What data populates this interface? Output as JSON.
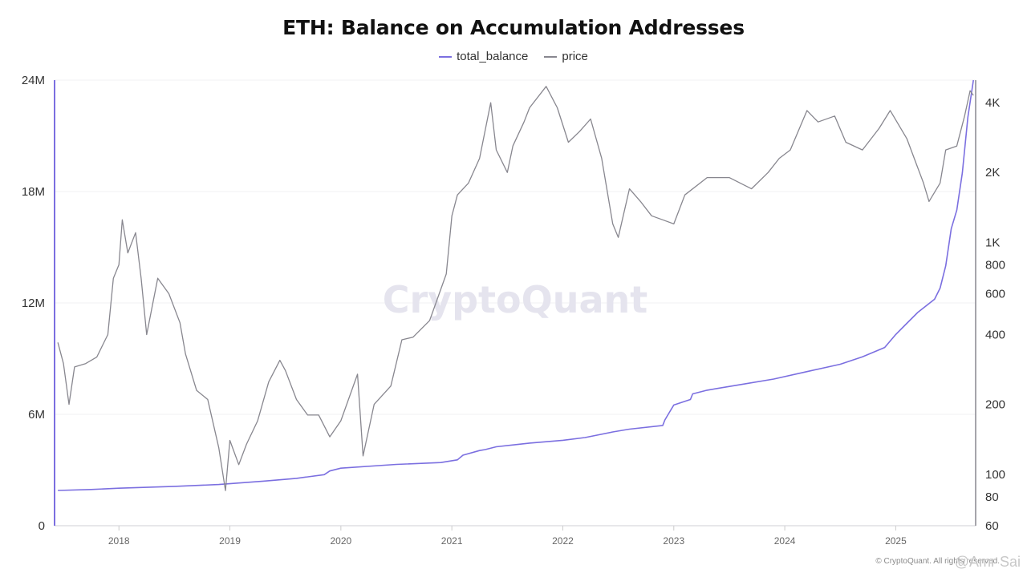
{
  "chart_data": {
    "type": "line",
    "title": "ETH: Balance on Accumulation Addresses",
    "legend_position": "top-center",
    "grid": true,
    "watermark": "CryptoQuant",
    "copyright": "© CryptoQuant. All rights reserved.",
    "user_mark": "@Amr Sai",
    "x_range": [
      2017.42,
      2025.72
    ],
    "x_ticks": [
      "2018",
      "2019",
      "2020",
      "2021",
      "2022",
      "2023",
      "2024",
      "2025"
    ],
    "y_left": {
      "scale": "linear",
      "range": [
        0,
        24000000
      ],
      "ticks": [
        0,
        6000000,
        12000000,
        18000000,
        24000000
      ],
      "tick_labels": [
        "0",
        "6M",
        "12M",
        "18M",
        "24M"
      ]
    },
    "y_right": {
      "scale": "log",
      "range": [
        60,
        5000
      ],
      "ticks": [
        60,
        80,
        100,
        200,
        400,
        600,
        800,
        1000,
        2000,
        4000
      ],
      "tick_labels": [
        "60",
        "80",
        "100",
        "200",
        "400",
        "600",
        "800",
        "1K",
        "2K",
        "4K"
      ]
    },
    "series": [
      {
        "name": "total_balance",
        "axis": "left",
        "color": "#7b6fe0",
        "points": [
          [
            2017.45,
            1900000
          ],
          [
            2017.75,
            1950000
          ],
          [
            2018.0,
            2020000
          ],
          [
            2018.5,
            2120000
          ],
          [
            2018.9,
            2220000
          ],
          [
            2019.3,
            2400000
          ],
          [
            2019.6,
            2550000
          ],
          [
            2019.85,
            2750000
          ],
          [
            2019.9,
            2950000
          ],
          [
            2020.0,
            3100000
          ],
          [
            2020.5,
            3300000
          ],
          [
            2020.9,
            3400000
          ],
          [
            2021.05,
            3550000
          ],
          [
            2021.1,
            3800000
          ],
          [
            2021.25,
            4050000
          ],
          [
            2021.3,
            4100000
          ],
          [
            2021.4,
            4250000
          ],
          [
            2021.7,
            4450000
          ],
          [
            2022.0,
            4600000
          ],
          [
            2022.2,
            4750000
          ],
          [
            2022.45,
            5050000
          ],
          [
            2022.6,
            5200000
          ],
          [
            2022.9,
            5400000
          ],
          [
            2022.92,
            5700000
          ],
          [
            2022.97,
            6200000
          ],
          [
            2023.0,
            6500000
          ],
          [
            2023.15,
            6800000
          ],
          [
            2023.17,
            7100000
          ],
          [
            2023.3,
            7300000
          ],
          [
            2023.6,
            7600000
          ],
          [
            2023.9,
            7900000
          ],
          [
            2024.2,
            8300000
          ],
          [
            2024.5,
            8700000
          ],
          [
            2024.7,
            9100000
          ],
          [
            2024.9,
            9600000
          ],
          [
            2025.0,
            10300000
          ],
          [
            2025.1,
            10900000
          ],
          [
            2025.2,
            11500000
          ],
          [
            2025.35,
            12200000
          ],
          [
            2025.4,
            12800000
          ],
          [
            2025.45,
            14000000
          ],
          [
            2025.5,
            16000000
          ],
          [
            2025.55,
            17000000
          ],
          [
            2025.6,
            19000000
          ],
          [
            2025.65,
            22000000
          ],
          [
            2025.7,
            24000000
          ]
        ]
      },
      {
        "name": "price",
        "axis": "right",
        "color": "#88878f",
        "points": [
          [
            2017.45,
            370
          ],
          [
            2017.5,
            300
          ],
          [
            2017.55,
            200
          ],
          [
            2017.6,
            290
          ],
          [
            2017.7,
            300
          ],
          [
            2017.8,
            320
          ],
          [
            2017.9,
            400
          ],
          [
            2017.95,
            700
          ],
          [
            2018.0,
            800
          ],
          [
            2018.03,
            1250
          ],
          [
            2018.08,
            900
          ],
          [
            2018.15,
            1100
          ],
          [
            2018.2,
            700
          ],
          [
            2018.25,
            400
          ],
          [
            2018.35,
            700
          ],
          [
            2018.45,
            600
          ],
          [
            2018.55,
            450
          ],
          [
            2018.6,
            330
          ],
          [
            2018.7,
            230
          ],
          [
            2018.8,
            210
          ],
          [
            2018.9,
            130
          ],
          [
            2018.96,
            85
          ],
          [
            2019.0,
            140
          ],
          [
            2019.08,
            110
          ],
          [
            2019.15,
            135
          ],
          [
            2019.25,
            170
          ],
          [
            2019.35,
            250
          ],
          [
            2019.45,
            310
          ],
          [
            2019.5,
            280
          ],
          [
            2019.6,
            210
          ],
          [
            2019.7,
            180
          ],
          [
            2019.8,
            180
          ],
          [
            2019.9,
            145
          ],
          [
            2020.0,
            170
          ],
          [
            2020.15,
            270
          ],
          [
            2020.2,
            120
          ],
          [
            2020.3,
            200
          ],
          [
            2020.45,
            240
          ],
          [
            2020.55,
            380
          ],
          [
            2020.65,
            390
          ],
          [
            2020.8,
            460
          ],
          [
            2020.95,
            730
          ],
          [
            2021.0,
            1300
          ],
          [
            2021.05,
            1600
          ],
          [
            2021.15,
            1800
          ],
          [
            2021.25,
            2300
          ],
          [
            2021.35,
            4000
          ],
          [
            2021.4,
            2500
          ],
          [
            2021.5,
            2000
          ],
          [
            2021.55,
            2600
          ],
          [
            2021.65,
            3300
          ],
          [
            2021.7,
            3800
          ],
          [
            2021.85,
            4700
          ],
          [
            2021.95,
            3800
          ],
          [
            2022.05,
            2700
          ],
          [
            2022.15,
            3000
          ],
          [
            2022.25,
            3400
          ],
          [
            2022.35,
            2300
          ],
          [
            2022.45,
            1200
          ],
          [
            2022.5,
            1050
          ],
          [
            2022.6,
            1700
          ],
          [
            2022.7,
            1500
          ],
          [
            2022.8,
            1300
          ],
          [
            2022.9,
            1250
          ],
          [
            2023.0,
            1200
          ],
          [
            2023.1,
            1600
          ],
          [
            2023.3,
            1900
          ],
          [
            2023.5,
            1900
          ],
          [
            2023.7,
            1700
          ],
          [
            2023.85,
            2000
          ],
          [
            2023.95,
            2300
          ],
          [
            2024.05,
            2500
          ],
          [
            2024.2,
            3700
          ],
          [
            2024.3,
            3300
          ],
          [
            2024.45,
            3500
          ],
          [
            2024.55,
            2700
          ],
          [
            2024.7,
            2500
          ],
          [
            2024.85,
            3100
          ],
          [
            2024.95,
            3700
          ],
          [
            2025.1,
            2800
          ],
          [
            2025.25,
            1800
          ],
          [
            2025.3,
            1500
          ],
          [
            2025.4,
            1800
          ],
          [
            2025.45,
            2500
          ],
          [
            2025.55,
            2600
          ],
          [
            2025.62,
            3500
          ],
          [
            2025.67,
            4500
          ],
          [
            2025.7,
            4300
          ]
        ]
      }
    ]
  }
}
